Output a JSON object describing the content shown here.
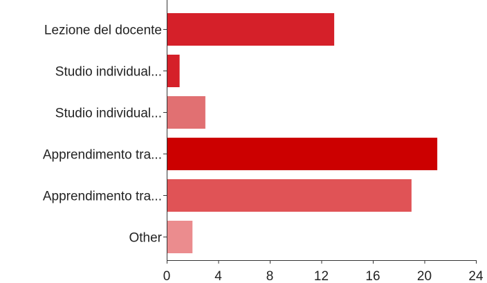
{
  "chart_data": {
    "type": "bar",
    "orientation": "horizontal",
    "title": "",
    "xlabel": "",
    "ylabel": "",
    "categories": [
      "Lezione del docente",
      "Studio individual...",
      "Studio individual...",
      "Apprendimento tra...",
      "Apprendimento tra...",
      "Other"
    ],
    "values": [
      13,
      1,
      3,
      21,
      19,
      2
    ],
    "bar_colors": [
      "#d52029",
      "#d52029",
      "#e17072",
      "#cc0000",
      "#e05356",
      "#eb8c8e"
    ],
    "xlim": [
      0,
      24
    ],
    "x_ticks": [
      "0",
      "4",
      "8",
      "12",
      "16",
      "20",
      "24"
    ],
    "grid": false,
    "legend": "none"
  }
}
